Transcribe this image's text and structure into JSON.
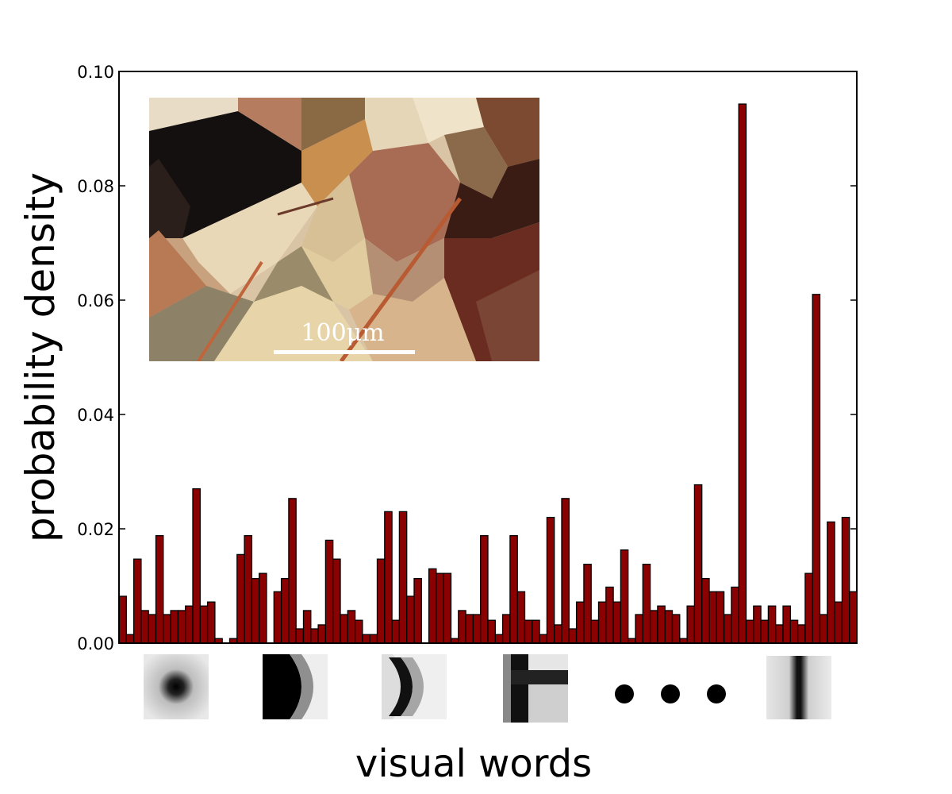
{
  "chart_data": {
    "type": "bar",
    "xlabel": "visual words",
    "ylabel": "probability density",
    "ylim": [
      0,
      0.1
    ],
    "yticks": [
      "0.00",
      "0.02",
      "0.04",
      "0.06",
      "0.08",
      "0.10"
    ],
    "grid": false,
    "values": [
      0.0082,
      0.0015,
      0.0147,
      0.0057,
      0.005,
      0.0188,
      0.005,
      0.0057,
      0.0057,
      0.0065,
      0.027,
      0.0065,
      0.0072,
      0.0008,
      0.0,
      0.0008,
      0.0155,
      0.0188,
      0.0113,
      0.0122,
      0.0,
      0.009,
      0.0113,
      0.0253,
      0.0025,
      0.0057,
      0.0025,
      0.0032,
      0.018,
      0.0147,
      0.005,
      0.0057,
      0.004,
      0.0015,
      0.0015,
      0.0147,
      0.023,
      0.004,
      0.023,
      0.0082,
      0.0113,
      0.0,
      0.013,
      0.0122,
      0.0122,
      0.0008,
      0.0057,
      0.005,
      0.005,
      0.0188,
      0.004,
      0.0015,
      0.005,
      0.0188,
      0.009,
      0.004,
      0.004,
      0.0015,
      0.022,
      0.0032,
      0.0253,
      0.0025,
      0.0072,
      0.0138,
      0.004,
      0.0072,
      0.0098,
      0.0072,
      0.0163,
      0.0008,
      0.005,
      0.0138,
      0.0057,
      0.0065,
      0.0057,
      0.005,
      0.0008,
      0.0065,
      0.0277,
      0.0113,
      0.009,
      0.009,
      0.005,
      0.0098,
      0.0943,
      0.004,
      0.0065,
      0.004,
      0.0065,
      0.0032,
      0.0065,
      0.004,
      0.0032,
      0.0122,
      0.061,
      0.005,
      0.0212,
      0.0072,
      0.022,
      0.009
    ],
    "bar_color": "#8b0000",
    "inset_image": {
      "scale_bar_label": "100μm"
    },
    "visual_word_patches": [
      "dot-patch",
      "left-dark-curve-patch",
      "right-dark-curve-patch",
      "cross-patch",
      "vertical-line-patch"
    ],
    "ellipsis": "..."
  }
}
